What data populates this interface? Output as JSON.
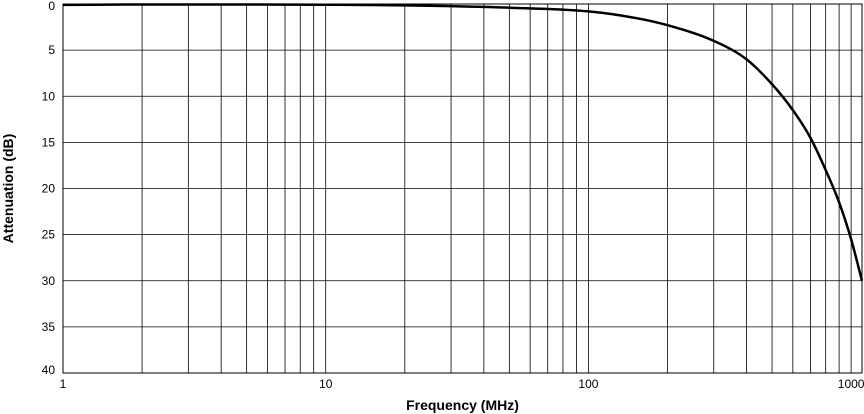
{
  "chart_data": {
    "type": "line",
    "title": "",
    "xlabel": "Frequency (MHz)",
    "ylabel": "Attenuation (dB)",
    "x_scale": "log",
    "xlim": [
      1,
      1100
    ],
    "ylim": [
      0,
      40
    ],
    "y_inverted": true,
    "grid": true,
    "x_ticks": [
      1,
      10,
      100,
      1000
    ],
    "x_tick_labels": [
      "1",
      "10",
      "100",
      "1000"
    ],
    "y_ticks": [
      0,
      5,
      10,
      15,
      20,
      25,
      30,
      35,
      40
    ],
    "y_tick_labels": [
      "0",
      "5",
      "10",
      "15",
      "20",
      "25",
      "30",
      "35",
      "40"
    ],
    "line_color": "#000000",
    "series": [
      {
        "x": [
          1,
          2,
          5,
          10,
          20,
          50,
          100,
          150,
          200,
          300,
          400,
          500,
          600,
          700,
          800,
          900,
          1000,
          1100
        ],
        "y": [
          0.1,
          0.05,
          0.05,
          0.08,
          0.15,
          0.4,
          0.8,
          1.5,
          2.3,
          4.0,
          6.0,
          8.7,
          11.5,
          14.5,
          18.0,
          21.5,
          25.5,
          30.0
        ]
      }
    ]
  }
}
